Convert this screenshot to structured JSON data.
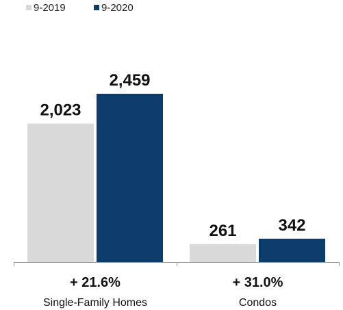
{
  "chart_data": {
    "type": "bar",
    "categories": [
      "Single-Family Homes",
      "Condos"
    ],
    "changes": [
      "+ 21.6%",
      "+ 31.0%"
    ],
    "series": [
      {
        "name": "9-2019",
        "values": [
          2023,
          261
        ],
        "labels": [
          "2,023",
          "261"
        ],
        "color": "#d9d9d9"
      },
      {
        "name": "9-2020",
        "values": [
          2459,
          342
        ],
        "labels": [
          "2,459",
          "342"
        ],
        "color": "#0f3d6b"
      }
    ],
    "ylim": [
      0,
      2459
    ],
    "legend_position": "top-left",
    "grid": false,
    "axis_color": "#999999"
  }
}
